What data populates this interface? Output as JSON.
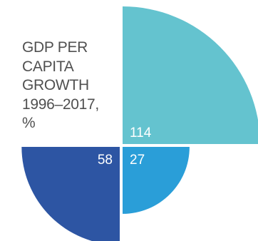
{
  "chart_data": {
    "type": "rose",
    "title_lines": [
      "GDP PER",
      "CAPITA",
      "GROWTH",
      "1996–2017,",
      "%"
    ],
    "value_scale_max": 114,
    "slices": [
      {
        "value": 114,
        "label": "114",
        "quadrant": "top-right",
        "color": "#64c3cf"
      },
      {
        "value": 27,
        "label": "27",
        "quadrant": "bottom-right",
        "color": "#2a9ed8"
      },
      {
        "value": 58,
        "label": "58",
        "quadrant": "bottom-left",
        "color": "#2d55a3"
      }
    ]
  }
}
